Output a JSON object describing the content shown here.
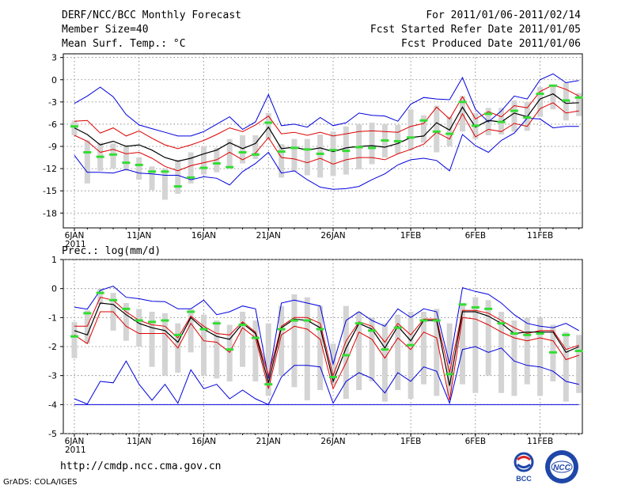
{
  "header": {
    "title": "DERF/NCC/BCC Monthly Forecast",
    "member_size": "Member Size=40",
    "variable": "Mean Surf. Temp.: °C",
    "forecast_range": "For 2011/01/06-2011/02/14",
    "started_refer": "Fcst Started Refer Date 2011/01/05",
    "produced": "Fcst Produced Date 2011/01/06"
  },
  "footer": {
    "url": "http://cmdp.ncc.cma.gov.cn",
    "credit": "GrADS: COLA/IGES",
    "logo_bcc": "BCC",
    "logo_ncc": "NCC"
  },
  "colors": {
    "envelope": "#0000dd",
    "spread": "#dd0000",
    "mean": "#000000",
    "member": "#33dd33",
    "box": "#d4d4d4"
  },
  "chart_data": [
    {
      "type": "line",
      "title": "Mean Surf. Temp.: °C",
      "xlabel": "",
      "ylabel": "°C",
      "ylim": [
        -20,
        3.5
      ],
      "yticks": [
        3,
        0,
        -3,
        -6,
        -9,
        -12,
        -15,
        -18
      ],
      "x_days": 40,
      "x_tick_labels": [
        "6JAN",
        "11JAN",
        "16JAN",
        "21JAN",
        "26JAN",
        "1FEB",
        "6FEB",
        "11FEB"
      ],
      "x_tick_index": [
        0,
        5,
        10,
        15,
        20,
        26,
        31,
        36
      ],
      "year_label": "2011",
      "series": [
        {
          "name": "max",
          "values": [
            -3.2,
            -2.2,
            -1.0,
            -2.3,
            -4.7,
            -6.1,
            -6.6,
            -7.1,
            -7.6,
            -7.6,
            -7.0,
            -6.0,
            -5.0,
            -6.7,
            -5.7,
            -2.0,
            -6.2,
            -6.0,
            -6.4,
            -5.1,
            -6.2,
            -5.8,
            -4.5,
            -4.8,
            -4.9,
            -5.6,
            -3.3,
            -2.4,
            -2.6,
            -2.7,
            0.3,
            -4.0,
            -5.7,
            -4.2,
            -2.2,
            -2.6,
            0.0,
            0.8,
            -0.4,
            -0.1
          ]
        },
        {
          "name": "upper",
          "values": [
            -5.6,
            -5.5,
            -7.2,
            -6.5,
            -7.6,
            -6.9,
            -7.9,
            -8.8,
            -9.3,
            -8.8,
            -8.2,
            -7.4,
            -6.5,
            -7.0,
            -6.1,
            -4.9,
            -7.3,
            -7.1,
            -7.5,
            -7.1,
            -7.6,
            -7.3,
            -7.0,
            -6.9,
            -7.0,
            -7.1,
            -6.3,
            -5.9,
            -3.7,
            -5.3,
            -2.3,
            -5.3,
            -4.3,
            -5.0,
            -3.5,
            -3.8,
            -1.6,
            -0.7,
            -1.3,
            -2.2
          ]
        },
        {
          "name": "mean",
          "values": [
            -6.5,
            -7.4,
            -8.8,
            -8.3,
            -9.0,
            -8.8,
            -9.5,
            -10.5,
            -11.0,
            -10.6,
            -10.0,
            -9.5,
            -8.5,
            -9.3,
            -8.6,
            -6.4,
            -9.3,
            -9.1,
            -9.5,
            -9.2,
            -9.7,
            -9.2,
            -9.0,
            -8.9,
            -9.1,
            -8.6,
            -7.8,
            -7.6,
            -5.8,
            -6.8,
            -3.7,
            -6.4,
            -5.5,
            -5.7,
            -4.5,
            -5.0,
            -2.6,
            -1.9,
            -3.2,
            -3.1
          ]
        },
        {
          "name": "lower",
          "values": [
            -7.5,
            -8.3,
            -9.8,
            -9.4,
            -10.0,
            -9.8,
            -10.6,
            -11.7,
            -12.3,
            -11.6,
            -11.2,
            -10.8,
            -9.8,
            -10.8,
            -9.9,
            -7.8,
            -10.5,
            -10.7,
            -11.2,
            -10.6,
            -11.4,
            -10.8,
            -10.5,
            -10.5,
            -10.8,
            -10.0,
            -9.4,
            -8.7,
            -7.1,
            -8.0,
            -4.6,
            -7.7,
            -6.7,
            -7.0,
            -5.9,
            -6.3,
            -3.9,
            -3.1,
            -4.5,
            -4.2
          ]
        },
        {
          "name": "min",
          "values": [
            -10.2,
            -12.5,
            -12.5,
            -12.6,
            -12.1,
            -12.6,
            -12.7,
            -12.9,
            -12.9,
            -13.5,
            -13.1,
            -13.3,
            -14.2,
            -12.4,
            -11.3,
            -9.8,
            -12.6,
            -12.3,
            -13.5,
            -14.5,
            -14.8,
            -14.7,
            -14.4,
            -13.5,
            -12.7,
            -11.5,
            -10.8,
            -10.6,
            -10.9,
            -12.3,
            -7.4,
            -8.9,
            -9.8,
            -8.2,
            -7.2,
            -5.2,
            -5.3,
            -6.5,
            -6.3,
            -6.3
          ]
        }
      ],
      "members": [
        -6.3,
        -9.8,
        -10.4,
        -10.1,
        -11.2,
        -11.5,
        -12.4,
        -12.4,
        -14.4,
        -13.2,
        -11.9,
        -11.3,
        -11.8,
        -9.8,
        -10.1,
        -5.8,
        -9.7,
        -9.2,
        -9.4,
        -10.0,
        -9.5,
        -9.6,
        -9.1,
        -9.2,
        -8.2,
        -8.3,
        -7.8,
        -5.5,
        -7.0,
        -7.3,
        -3.0,
        -6.2,
        -4.6,
        -5.7,
        -4.2,
        -5.1,
        -1.9,
        -0.8,
        -2.8,
        -2.4
      ],
      "box_low": [
        -7.5,
        -14.0,
        -12.3,
        -12.0,
        -12.3,
        -13.5,
        -14.9,
        -16.2,
        -15.4,
        -14.0,
        -12.8,
        -12.5,
        -12.0,
        -11.3,
        -10.7,
        -8.0,
        -13.2,
        -12.4,
        -12.9,
        -13.2,
        -13.0,
        -12.8,
        -12.1,
        -11.4,
        -10.5,
        -10.0,
        -9.5,
        -8.5,
        -9.8,
        -9.0,
        -7.0,
        -8.0,
        -7.5,
        -7.4,
        -7.0,
        -6.9,
        -5.0,
        -4.0,
        -5.5,
        -4.9
      ],
      "box_high": [
        -5.5,
        -8.2,
        -8.5,
        -8.6,
        -8.8,
        -10.5,
        -11.7,
        -12.0,
        -10.8,
        -9.8,
        -9.0,
        -9.2,
        -8.0,
        -7.5,
        -7.5,
        -4.5,
        -8.7,
        -8.0,
        -8.0,
        -7.4,
        -7.0,
        -6.3,
        -6.0,
        -5.8,
        -6.0,
        -6.1,
        -4.0,
        -4.8,
        -3.5,
        -5.0,
        -2.2,
        -4.5,
        -3.8,
        -3.8,
        -2.8,
        -3.0,
        -1.0,
        -0.7,
        -0.4,
        -1.8
      ]
    },
    {
      "type": "line",
      "title": "Prec.: log(mm/d)",
      "xlabel": "",
      "ylabel": "log(mm/d)",
      "ylim": [
        -5,
        1
      ],
      "yticks": [
        1,
        0,
        -1,
        -2,
        -3,
        -4,
        -5
      ],
      "baseline": -4,
      "x_days": 40,
      "x_tick_labels": [
        "6JAN",
        "11JAN",
        "16JAN",
        "21JAN",
        "26JAN",
        "1FEB",
        "6FEB",
        "11FEB"
      ],
      "x_tick_index": [
        0,
        5,
        10,
        15,
        20,
        26,
        31,
        36
      ],
      "year_label": "2011",
      "series": [
        {
          "name": "max",
          "values": [
            -0.64,
            -0.71,
            -0.06,
            0.08,
            -0.3,
            -0.35,
            -0.44,
            -0.45,
            -0.7,
            -0.7,
            -0.4,
            -0.9,
            -0.8,
            -0.6,
            -0.7,
            -3.1,
            -0.5,
            -0.4,
            -0.5,
            -0.6,
            -2.6,
            -1.1,
            -0.8,
            -1.1,
            -1.3,
            -0.7,
            -1.0,
            -0.7,
            -0.8,
            -2.6,
            0.03,
            -0.1,
            -0.2,
            -0.5,
            -0.9,
            -1.2,
            -1.3,
            -1.35,
            -1.2,
            -1.45
          ]
        },
        {
          "name": "upper",
          "values": [
            -1.3,
            -1.3,
            -0.3,
            -0.4,
            -0.8,
            -1.1,
            -1.25,
            -1.3,
            -1.7,
            -0.95,
            -1.3,
            -1.55,
            -1.6,
            -1.15,
            -1.5,
            -3.0,
            -1.3,
            -1.0,
            -1.0,
            -1.2,
            -3.0,
            -1.8,
            -1.15,
            -1.3,
            -1.85,
            -1.2,
            -1.6,
            -1.05,
            -1.05,
            -2.9,
            -0.75,
            -0.75,
            -0.85,
            -1.1,
            -1.35,
            -1.55,
            -1.45,
            -1.45,
            -2.1,
            -1.95
          ]
        },
        {
          "name": "mean",
          "values": [
            -1.45,
            -1.6,
            -0.5,
            -0.55,
            -0.9,
            -1.2,
            -1.35,
            -1.45,
            -1.85,
            -1.0,
            -1.4,
            -1.65,
            -1.75,
            -1.2,
            -1.55,
            -3.25,
            -1.35,
            -1.05,
            -1.1,
            -1.35,
            -3.2,
            -2.05,
            -1.2,
            -1.4,
            -2.05,
            -1.3,
            -1.8,
            -1.1,
            -1.1,
            -3.35,
            -0.8,
            -0.8,
            -0.95,
            -1.2,
            -1.55,
            -1.5,
            -1.5,
            -1.5,
            -2.2,
            -2.0
          ]
        },
        {
          "name": "lower",
          "values": [
            -1.6,
            -1.9,
            -0.8,
            -0.8,
            -1.3,
            -1.55,
            -1.55,
            -1.55,
            -2.05,
            -1.2,
            -1.8,
            -1.85,
            -2.2,
            -1.35,
            -1.7,
            -3.45,
            -1.6,
            -1.3,
            -1.4,
            -1.75,
            -3.45,
            -2.55,
            -1.5,
            -1.75,
            -2.4,
            -1.7,
            -2.1,
            -1.5,
            -1.7,
            -3.85,
            -1.0,
            -1.05,
            -1.25,
            -1.5,
            -1.7,
            -1.8,
            -1.7,
            -1.8,
            -2.45,
            -2.3
          ]
        },
        {
          "name": "min",
          "values": [
            -3.8,
            -3.98,
            -3.2,
            -3.25,
            -2.5,
            -3.3,
            -3.85,
            -3.3,
            -3.95,
            -2.8,
            -3.45,
            -3.3,
            -3.8,
            -3.5,
            -3.8,
            -4.0,
            -3.05,
            -2.65,
            -2.65,
            -2.7,
            -3.95,
            -3.2,
            -2.9,
            -3.1,
            -3.6,
            -2.9,
            -3.2,
            -2.7,
            -2.85,
            -3.95,
            -2.1,
            -2.0,
            -2.2,
            -2.05,
            -2.5,
            -2.65,
            -2.7,
            -2.85,
            -3.2,
            -3.3
          ]
        }
      ],
      "members": [
        -1.65,
        -0.85,
        -0.15,
        -0.4,
        -0.7,
        -1.1,
        -1.15,
        -1.1,
        -1.6,
        -0.8,
        -1.4,
        -1.2,
        -2.1,
        -1.25,
        -1.7,
        -3.3,
        -1.4,
        -1.1,
        -1.1,
        -1.4,
        -3.05,
        -2.3,
        -1.2,
        -1.45,
        -2.1,
        -1.35,
        -1.95,
        -1.1,
        -1.1,
        -2.95,
        -0.55,
        -0.65,
        -0.7,
        -1.2,
        -1.55,
        -1.6,
        -1.55,
        -2.2,
        -1.6,
        -2.15
      ],
      "box_low": [
        -2.4,
        -1.9,
        -0.55,
        -1.45,
        -1.8,
        -2.0,
        -2.7,
        -3.0,
        -2.9,
        -2.2,
        -3.0,
        -3.1,
        -3.2,
        -2.7,
        -3.2,
        -3.7,
        -3.0,
        -3.4,
        -3.85,
        -3.5,
        -3.3,
        -3.8,
        -3.5,
        -3.2,
        -3.9,
        -3.5,
        -3.8,
        -3.3,
        -3.7,
        -3.7,
        -3.3,
        -3.6,
        -3.0,
        -3.6,
        -3.7,
        -3.3,
        -3.7,
        -3.2,
        -3.9,
        -3.6
      ],
      "box_high": [
        -1.15,
        -0.75,
        0.0,
        -0.15,
        -0.5,
        -0.7,
        -0.8,
        -0.85,
        -1.2,
        -0.7,
        -0.9,
        -1.1,
        -1.25,
        -0.8,
        -1.1,
        -1.2,
        -0.6,
        -0.2,
        -0.3,
        -0.6,
        -1.9,
        -0.6,
        -0.8,
        -1.0,
        -1.2,
        -0.9,
        -0.8,
        -0.8,
        -0.7,
        -1.2,
        -0.5,
        -0.3,
        -0.4,
        -0.8,
        -1.1,
        -1.0,
        -1.0,
        -1.25,
        -1.5,
        -1.6
      ]
    }
  ]
}
